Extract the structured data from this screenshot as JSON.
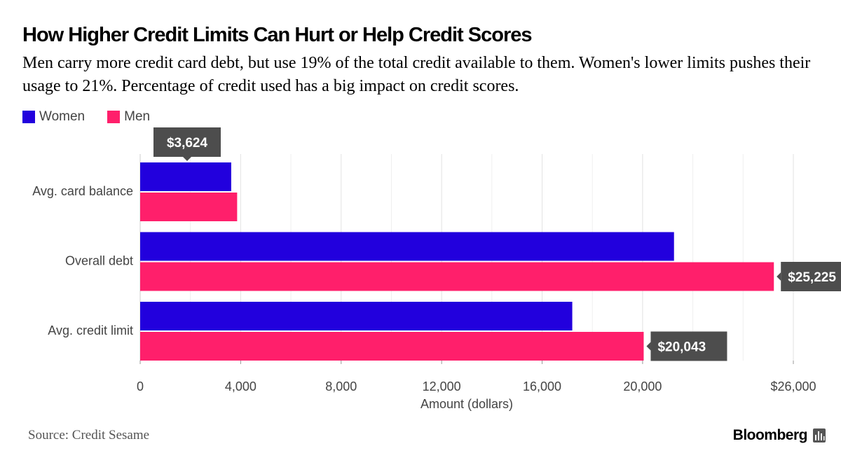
{
  "title": "How Higher Credit Limits Can Hurt or Help Credit Scores",
  "subtitle": "Men carry more credit card debt, but use 19% of the total credit available to them. Women's lower limits pushes their usage to 21%. Percentage of credit used has a big impact on credit scores.",
  "source": "Source: Credit Sesame",
  "brand": "Bloomberg",
  "colors": {
    "women": "#2200dd",
    "men": "#ff1f6b",
    "callout": "#4d4d4d"
  },
  "chart_data": {
    "type": "bar",
    "orientation": "horizontal",
    "categories": [
      "Avg. card balance",
      "Overall debt",
      "Avg. credit limit"
    ],
    "series": [
      {
        "name": "Women",
        "values": [
          3624,
          21250,
          17200
        ]
      },
      {
        "name": "Men",
        "values": [
          3860,
          25225,
          20043
        ]
      }
    ],
    "xlabel": "Amount (dollars)",
    "xlim": [
      0,
      26000
    ],
    "xticks": [
      {
        "value": 0,
        "label": "0"
      },
      {
        "value": 4000,
        "label": "4,000"
      },
      {
        "value": 8000,
        "label": "8,000"
      },
      {
        "value": 12000,
        "label": "12,000"
      },
      {
        "value": 16000,
        "label": "16,000"
      },
      {
        "value": 20000,
        "label": "20,000"
      },
      {
        "value": 26000,
        "label": "$26,000"
      }
    ],
    "grid": true,
    "legend": "top-left",
    "annotations": [
      {
        "series": 0,
        "category": 0,
        "text": "$3,624",
        "placement": "above"
      },
      {
        "series": 1,
        "category": 1,
        "text": "$25,225",
        "placement": "right"
      },
      {
        "series": 1,
        "category": 2,
        "text": "$20,043",
        "placement": "right"
      }
    ]
  }
}
